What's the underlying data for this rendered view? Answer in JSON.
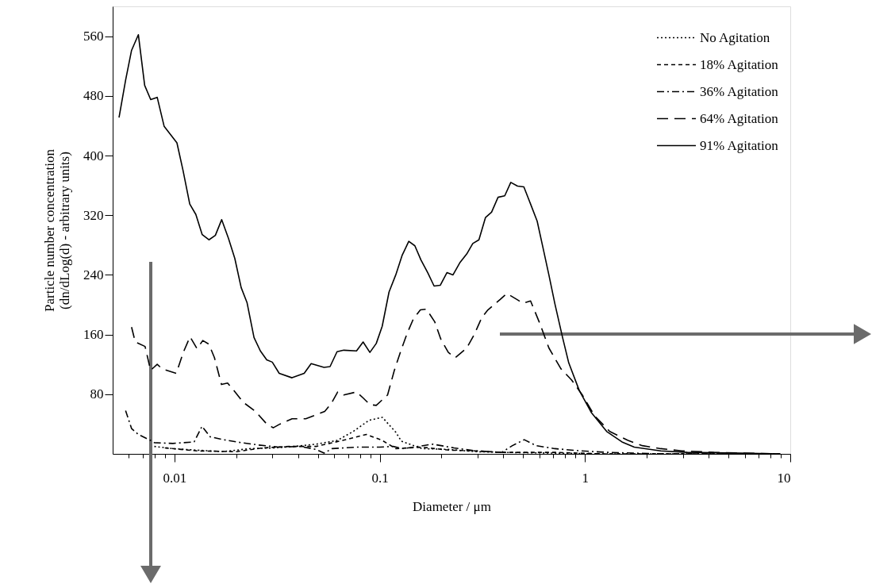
{
  "chart_data": {
    "type": "line",
    "xlabel": "Diameter / μm",
    "ylabel": "Particle number concentration\n(dn/dLog(d) - arbitrary units)",
    "log": "x",
    "grid": false,
    "legend": "top right",
    "xlim": [
      0.005,
      10
    ],
    "ylim": [
      0,
      600
    ],
    "xticks": [
      {
        "value": 0.006,
        "label": null
      },
      {
        "value": 0.007,
        "label": null
      },
      {
        "value": 0.008,
        "label": null
      },
      {
        "value": 0.009,
        "label": null
      },
      0.01,
      {
        "value": 0.02,
        "label": null
      },
      {
        "value": 0.03,
        "label": null
      },
      {
        "value": 0.04,
        "label": null
      },
      {
        "value": 0.05,
        "label": null
      },
      {
        "value": 0.06,
        "label": null
      },
      {
        "value": 0.07,
        "label": null
      },
      {
        "value": 0.08,
        "label": null
      },
      {
        "value": 0.09,
        "label": null
      },
      0.1,
      {
        "value": 0.2,
        "label": null
      },
      {
        "value": 0.3,
        "label": null
      },
      {
        "value": 0.4,
        "label": null
      },
      {
        "value": 0.5,
        "label": null
      },
      {
        "value": 0.6,
        "label": null
      },
      {
        "value": 0.7,
        "label": null
      },
      {
        "value": 0.8,
        "label": null
      },
      {
        "value": 0.9,
        "label": null
      },
      1,
      {
        "value": 2,
        "label": null
      },
      {
        "value": 3,
        "label": null
      },
      {
        "value": 4,
        "label": null
      },
      {
        "value": 5,
        "label": null
      },
      {
        "value": 6,
        "label": null
      },
      {
        "value": 7,
        "label": null
      },
      {
        "value": 8,
        "label": null
      },
      {
        "value": 9,
        "label": null
      },
      10
    ],
    "yticks": [
      80,
      160,
      240,
      320,
      400,
      480,
      560
    ],
    "series": [
      {
        "name": "No Agitation",
        "color": "#000000",
        "line_style": "dotted",
        "x": [
          0.00798,
          0.00982,
          0.01285,
          0.01729,
          0.02329,
          0.03041,
          0.03857,
          0.04893,
          0.06207,
          0.07426,
          0.08868,
          0.103,
          0.1197,
          0.1276,
          0.1607,
          0.2166,
          0.2918,
          0.3928,
          0.7125,
          1.216,
          3.0,
          8.93
        ],
        "values": [
          10,
          7,
          5,
          3,
          7,
          8,
          10,
          13,
          18,
          30,
          45,
          49,
          29,
          17,
          7,
          6,
          3,
          2,
          1,
          0,
          0,
          0
        ]
      },
      {
        "name": "18% Agitation",
        "color": "#000000",
        "line_style": "dashed",
        "x": [
          0.00898,
          0.01285,
          0.02006,
          0.02701,
          0.0364,
          0.04893,
          0.06592,
          0.08606,
          0.103,
          0.1197,
          0.1607,
          0.2166,
          0.2918,
          0.3928,
          0.7125,
          1.216,
          8.93
        ],
        "values": [
          8,
          4,
          3,
          8,
          10,
          10,
          18,
          26,
          18,
          7,
          9,
          5,
          4,
          2,
          2,
          0,
          0
        ]
      },
      {
        "name": "36% Agitation",
        "color": "#000000",
        "line_style": "dashdot",
        "x": [
          0.00578,
          0.00618,
          0.00667,
          0.00766,
          0.00798,
          0.00982,
          0.01247,
          0.01362,
          0.0149,
          0.01729,
          0.02006,
          0.02545,
          0.03228,
          0.04096,
          0.04893,
          0.05356,
          0.05851,
          0.07648,
          0.1,
          0.1161,
          0.1307,
          0.1813,
          0.2299,
          0.2918,
          0.3928,
          0.4428,
          0.5059,
          0.5781,
          0.7125,
          0.9591,
          1.291,
          2.339,
          8.93
        ],
        "values": [
          58,
          34,
          26,
          18,
          15,
          14,
          16,
          37,
          23,
          19,
          16,
          12,
          9,
          10,
          6,
          1,
          7,
          9,
          9,
          10,
          7,
          13,
          8,
          4,
          2,
          11,
          19,
          11,
          7,
          4,
          2,
          0,
          0
        ]
      },
      {
        "name": "64% Agitation",
        "color": "#000000",
        "line_style": "longdash",
        "x": [
          0.00618,
          0.00644,
          0.00719,
          0.00765,
          0.00824,
          0.00871,
          0.01021,
          0.01104,
          0.01191,
          0.01288,
          0.01374,
          0.01472,
          0.01566,
          0.01694,
          0.01815,
          0.01933,
          0.02166,
          0.02483,
          0.02815,
          0.03028,
          0.03266,
          0.03741,
          0.04363,
          0.05395,
          0.05794,
          0.06243,
          0.06683,
          0.07708,
          0.08299,
          0.08954,
          0.09616,
          0.1092,
          0.1178,
          0.1274,
          0.1362,
          0.1459,
          0.1578,
          0.1689,
          0.1854,
          0.1983,
          0.2159,
          0.2336,
          0.2654,
          0.2887,
          0.3144,
          0.3365,
          0.3862,
          0.4163,
          0.4656,
          0.4984,
          0.543,
          0.6021,
          0.6668,
          0.7638,
          0.861,
          0.9704,
          1.113,
          1.32,
          1.619,
          1.901,
          2.339,
          2.97,
          4.248,
          8.93
        ],
        "values": [
          170,
          150,
          144,
          112,
          120,
          114,
          108,
          136,
          157,
          141,
          152,
          147,
          129,
          93,
          95,
          86,
          69,
          57,
          40,
          35,
          40,
          47,
          47,
          57,
          67,
          83,
          79,
          83,
          75,
          66,
          65,
          79,
          112,
          140,
          162,
          181,
          193,
          194,
          177,
          154,
          136,
          129,
          142,
          160,
          183,
          193,
          207,
          215,
          207,
          202,
          205,
          175,
          142,
          114,
          99,
          79,
          51,
          30,
          18,
          11,
          7,
          4,
          2,
          0
        ]
      },
      {
        "name": "91% Agitation",
        "color": "#000000",
        "line_style": "solid",
        "x": [
          0.00537,
          0.00578,
          0.00618,
          0.00667,
          0.00716,
          0.00766,
          0.00824,
          0.00891,
          0.01028,
          0.01101,
          0.01187,
          0.01271,
          0.01365,
          0.01472,
          0.01582,
          0.01698,
          0.01832,
          0.01968,
          0.02113,
          0.02256,
          0.02441,
          0.02621,
          0.02815,
          0.02996,
          0.03238,
          0.03738,
          0.04285,
          0.04634,
          0.05353,
          0.05728,
          0.06194,
          0.06683,
          0.07708,
          0.08299,
          0.08954,
          0.09616,
          0.1028,
          0.111,
          0.1197,
          0.1285,
          0.1385,
          0.1483,
          0.1588,
          0.1713,
          0.184,
          0.1971,
          0.2125,
          0.2275,
          0.2453,
          0.2654,
          0.284,
          0.3042,
          0.3276,
          0.3506,
          0.377,
          0.4064,
          0.435,
          0.469,
          0.5036,
          0.543,
          0.5848,
          0.6223,
          0.6668,
          0.7137,
          0.7776,
          0.8333,
          0.9376,
          1.076,
          1.276,
          1.514,
          1.738,
          2.339,
          3.153,
          5.715,
          8.93
        ],
        "values": [
          451,
          501,
          541,
          562,
          494,
          475,
          478,
          439,
          417,
          380,
          335,
          321,
          294,
          287,
          293,
          314,
          289,
          262,
          223,
          203,
          156,
          138,
          126,
          123,
          108,
          102,
          108,
          121,
          116,
          117,
          137,
          139,
          138,
          150,
          136,
          148,
          171,
          217,
          240,
          266,
          285,
          279,
          260,
          243,
          225,
          226,
          243,
          240,
          256,
          268,
          282,
          287,
          317,
          324,
          344,
          346,
          364,
          359,
          358,
          335,
          312,
          278,
          240,
          201,
          156,
          122,
          85,
          55,
          30,
          16,
          9,
          4,
          2,
          1,
          0
        ]
      }
    ]
  }
}
